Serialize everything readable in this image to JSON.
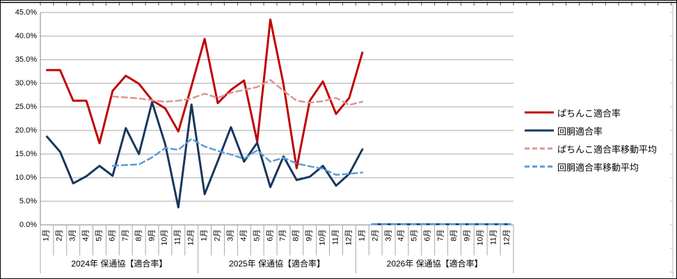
{
  "chart_data": {
    "type": "line",
    "title": "",
    "y_axis": {
      "unit": "%",
      "min": 0,
      "max": 45,
      "tick_labels": [
        "45.0%",
        "40.0%",
        "35.0%",
        "30.0%",
        "25.0%",
        "20.0%",
        "15.0%",
        "10.0%",
        "5.0%",
        "0.0%"
      ],
      "tick_values": [
        45,
        40,
        35,
        30,
        25,
        20,
        15,
        10,
        5,
        0
      ]
    },
    "x_axis": {
      "months": [
        "1月",
        "2月",
        "3月",
        "4月",
        "5月",
        "6月",
        "7月",
        "8月",
        "9月",
        "10月",
        "11月",
        "12月",
        "1月",
        "2月",
        "3月",
        "4月",
        "5月",
        "6月",
        "7月",
        "8月",
        "9月",
        "10月",
        "11月",
        "12月",
        "1月",
        "2月",
        "3月",
        "4月",
        "5月",
        "6月",
        "7月",
        "8月",
        "9月",
        "10月",
        "11月",
        "12月"
      ],
      "year_groups": [
        {
          "label": "2024年 保通協【適合率】",
          "months": 12
        },
        {
          "label": "2025年 保通協【適合率】",
          "months": 12
        },
        {
          "label": "2026年 保通協【適合率】",
          "months": 12
        }
      ]
    },
    "series": [
      {
        "key": "pachinko",
        "name": "ぱちんこ適合率",
        "color": "#C00000",
        "style": "solid",
        "width": 3,
        "start_index": 0,
        "values": [
          32.8,
          32.8,
          26.3,
          26.3,
          17.3,
          28.4,
          31.6,
          29.9,
          26.4,
          24.7,
          19.8,
          29.4,
          39.4,
          25.8,
          28.6,
          30.6,
          17.6,
          43.5,
          29.8,
          12.0,
          26.3,
          30.4,
          23.5,
          26.9,
          36.5
        ]
      },
      {
        "key": "kaidou",
        "name": "回胴適合率",
        "color": "#17365D",
        "style": "solid",
        "width": 3,
        "start_index": 0,
        "values": [
          18.7,
          15.5,
          8.8,
          10.3,
          12.5,
          10.4,
          20.5,
          15.0,
          26.0,
          17.1,
          3.7,
          25.5,
          6.5,
          13.5,
          20.7,
          13.4,
          17.4,
          8.0,
          14.5,
          9.5,
          10.2,
          12.5,
          8.3,
          10.8,
          16.0
        ]
      },
      {
        "key": "pachinko-ma",
        "name": "ぱちんこ適合率移動平均",
        "color": "#D99594",
        "style": "dashed",
        "width": 2.5,
        "start_index": 5,
        "values": [
          27.2,
          27.0,
          26.8,
          26.4,
          26.1,
          26.3,
          26.8,
          27.8,
          26.9,
          28.0,
          28.6,
          29.2,
          30.7,
          28.4,
          26.3,
          25.9,
          26.2,
          26.9,
          25.4,
          26.1
        ]
      },
      {
        "key": "kaidou-ma",
        "name": "回胴適合率移動平均",
        "color": "#5B9BD5",
        "style": "dashed",
        "width": 2.5,
        "start_index": 5,
        "values": [
          12.5,
          12.7,
          12.8,
          14.3,
          16.3,
          15.9,
          18.2,
          16.6,
          15.7,
          14.9,
          14.0,
          15.8,
          13.4,
          14.2,
          13.0,
          12.4,
          11.9,
          10.6,
          10.8,
          11.1
        ]
      }
    ],
    "zero_line_2026": {
      "note": "flat dashed line at 0.0% for Feb-Dec 2026",
      "from_index": 25,
      "to_index": 35,
      "value": 0.0,
      "colors": [
        "#17365D",
        "#5B9BD5"
      ]
    },
    "legend_position": "right"
  }
}
